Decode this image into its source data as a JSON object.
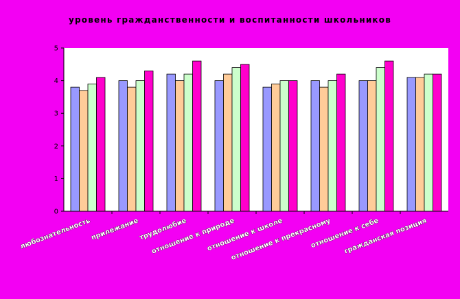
{
  "chart_data": {
    "type": "bar",
    "title": "уровень гражданственности и воспитанности школьников",
    "xlabel": "",
    "ylabel": "",
    "ylim": [
      0,
      5
    ],
    "yticks": [
      0,
      1,
      2,
      3,
      4,
      5
    ],
    "grid": false,
    "legend": "none",
    "categories": [
      "любознательность",
      "прилежание",
      "трудолюбие",
      "отношение к природе",
      "отношение к школе",
      "отношение к прекрасному",
      "отношение к себе",
      "гражданская позиция"
    ],
    "series": [
      {
        "color": "#9999ff",
        "values": [
          3.8,
          4.0,
          4.2,
          4.0,
          3.8,
          4.0,
          4.0,
          4.1
        ]
      },
      {
        "color": "#ffcc99",
        "values": [
          3.7,
          3.8,
          4.0,
          4.2,
          3.9,
          3.8,
          4.0,
          4.1
        ]
      },
      {
        "color": "#ccffcc",
        "values": [
          3.9,
          4.0,
          4.2,
          4.4,
          4.0,
          4.0,
          4.4,
          4.2
        ]
      },
      {
        "color": "#ff00cc",
        "values": [
          4.1,
          4.3,
          4.6,
          4.5,
          4.0,
          4.2,
          4.6,
          4.2
        ]
      }
    ],
    "plot_background": "#ffffff",
    "page_background": "#f300f3"
  }
}
